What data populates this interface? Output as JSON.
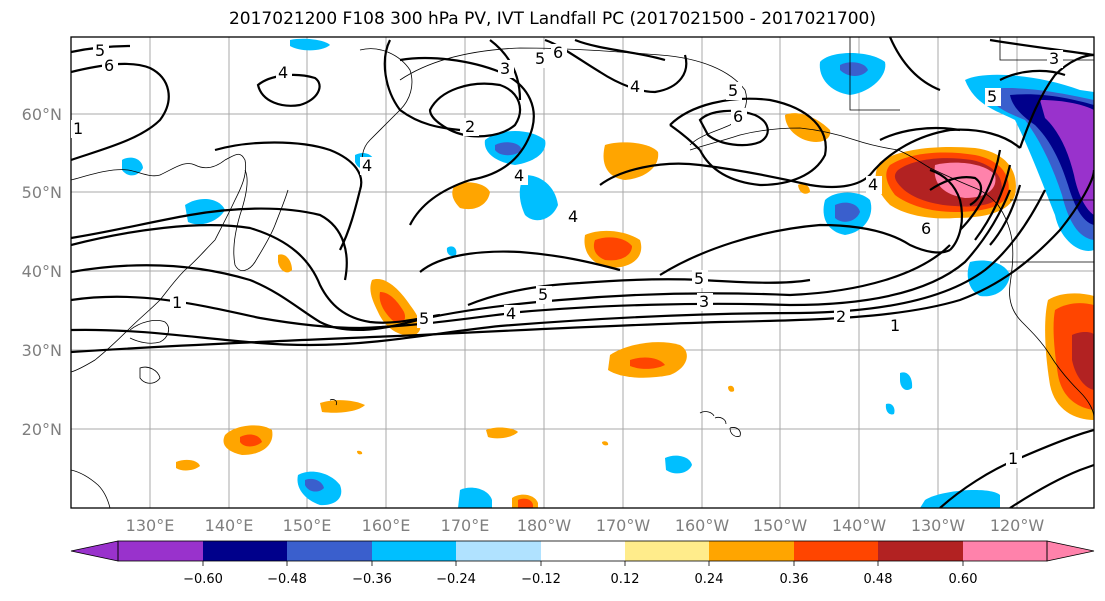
{
  "title": "2017021200 F108 300 hPa PV, IVT Landfall PC (2017021500 - 2017021700)",
  "map": {
    "lat_labels": [
      "60°N",
      "50°N",
      "40°N",
      "30°N",
      "20°N"
    ],
    "lon_labels": [
      "130°E",
      "140°E",
      "150°E",
      "160°E",
      "170°E",
      "180°W",
      "170°W",
      "160°W",
      "150°W",
      "140°W",
      "130°W",
      "120°W"
    ],
    "contour_labels": [
      "5",
      "6",
      "4",
      "6",
      "3",
      "5",
      "4",
      "2",
      "5",
      "6",
      "1",
      "4",
      "4",
      "5",
      "5",
      "4",
      "6",
      "4",
      "5",
      "3",
      "2",
      "1",
      "5",
      "4",
      "1",
      "1",
      "3"
    ]
  },
  "colorbar": {
    "ticks": [
      "−0.60",
      "−0.48",
      "−0.36",
      "−0.24",
      "−0.12",
      "0.12",
      "0.24",
      "0.36",
      "0.48",
      "0.60"
    ],
    "colors": [
      "#9932cc",
      "#00008b",
      "#3a5fcd",
      "#00bfff",
      "#b0e2ff",
      "#ffffff",
      "#ffec8b",
      "#ffa500",
      "#ff4500",
      "#b22222",
      "#ff82ab"
    ]
  }
}
